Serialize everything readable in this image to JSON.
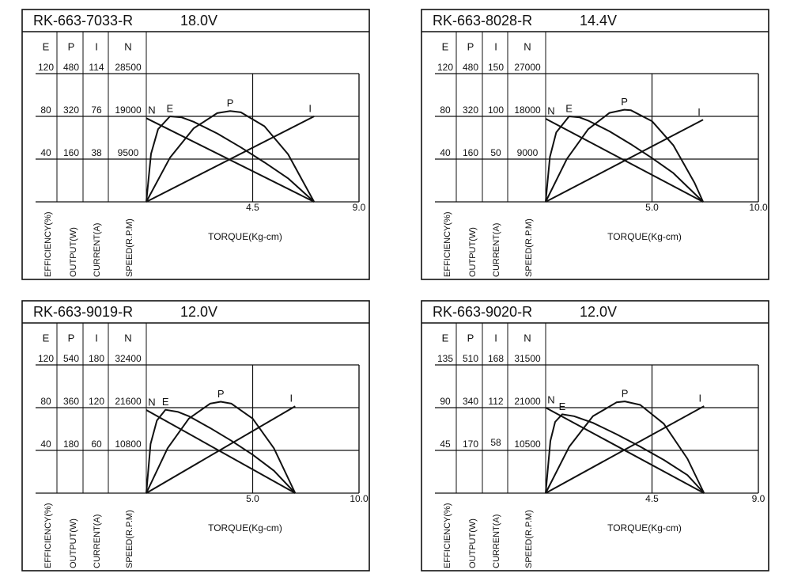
{
  "chart_data": [
    {
      "type": "line",
      "title": "RK-663-7033-R",
      "voltage": "18.0V",
      "xlabel": "TORQUE(Kg-cm)",
      "xlim": [
        0,
        9
      ],
      "xticks": [
        4.5,
        {
          "value": 9,
          "label": "9.0"
        }
      ],
      "axes": [
        {
          "name": "E",
          "label": "EFFICIENCY(%)",
          "ylim": [
            0,
            120
          ],
          "yticks": [
            40,
            80,
            120
          ]
        },
        {
          "name": "P",
          "label": "OUTPUT(W)",
          "ylim": [
            0,
            480
          ],
          "yticks": [
            160,
            320,
            480
          ]
        },
        {
          "name": "I",
          "label": "CURRENT(A)",
          "ylim": [
            0,
            114
          ],
          "yticks": [
            38,
            76,
            114
          ]
        },
        {
          "name": "N",
          "label": "SPEED(R.P.M)",
          "ylim": [
            0,
            28500
          ],
          "yticks": [
            9500,
            19000,
            28500
          ]
        }
      ],
      "series": [
        {
          "name": "N",
          "x": [
            0,
            7.1
          ],
          "values": [
            18600,
            0
          ]
        },
        {
          "name": "E",
          "x": [
            0,
            0.2,
            0.5,
            1,
            1.5,
            2,
            3,
            4,
            5,
            6,
            7.1
          ],
          "values": [
            0,
            45,
            68,
            80,
            79,
            75,
            64,
            51,
            37,
            22,
            0
          ]
        },
        {
          "name": "P",
          "x": [
            0,
            1,
            2,
            3,
            3.55,
            4,
            5,
            6,
            7.1
          ],
          "values": [
            0,
            165,
            275,
            332,
            340,
            335,
            283,
            178,
            0
          ]
        },
        {
          "name": "I",
          "x": [
            0,
            7.1
          ],
          "values": [
            0,
            76
          ]
        }
      ]
    },
    {
      "type": "line",
      "title": "RK-663-8028-R",
      "voltage": "14.4V",
      "xlabel": "TORQUE(Kg-cm)",
      "xlim": [
        0,
        10
      ],
      "xticks": [
        {
          "value": 5,
          "label": "5.0"
        },
        {
          "value": 10,
          "label": "10.0"
        }
      ],
      "axes": [
        {
          "name": "E",
          "label": "EFFICIENCY(%)",
          "ylim": [
            0,
            120
          ],
          "yticks": [
            40,
            80,
            120
          ]
        },
        {
          "name": "P",
          "label": "OUTPUT(W)",
          "ylim": [
            0,
            480
          ],
          "yticks": [
            160,
            320,
            480
          ]
        },
        {
          "name": "I",
          "label": "CURRENT(A)",
          "ylim": [
            0,
            150
          ],
          "yticks": [
            50,
            100,
            150
          ]
        },
        {
          "name": "N",
          "label": "SPEED(R.P.M)",
          "ylim": [
            0,
            27000
          ],
          "yticks": [
            9000,
            18000,
            27000
          ]
        }
      ],
      "series": [
        {
          "name": "N",
          "x": [
            0,
            7.4
          ],
          "values": [
            17500,
            0
          ]
        },
        {
          "name": "E",
          "x": [
            0,
            0.2,
            0.5,
            1.1,
            1.6,
            2,
            3,
            4,
            5,
            6,
            7.4
          ],
          "values": [
            0,
            42,
            65,
            80,
            79,
            76,
            66,
            54,
            41,
            27,
            0
          ]
        },
        {
          "name": "P",
          "x": [
            0,
            1,
            2,
            3,
            3.7,
            4,
            5,
            6,
            7,
            7.4
          ],
          "values": [
            0,
            161,
            272,
            333,
            345,
            343,
            302,
            212,
            71,
            0
          ]
        },
        {
          "name": "I",
          "x": [
            0,
            7.4
          ],
          "values": [
            0,
            96
          ]
        }
      ]
    },
    {
      "type": "line",
      "title": "RK-663-9019-R",
      "voltage": "12.0V",
      "xlabel": "TORQUE(Kg-cm)",
      "xlim": [
        0,
        10
      ],
      "xticks": [
        {
          "value": 5,
          "label": "5.0"
        },
        {
          "value": 10,
          "label": "10.0"
        }
      ],
      "axes": [
        {
          "name": "E",
          "label": "EFFICIENCY(%)",
          "ylim": [
            0,
            120
          ],
          "yticks": [
            40,
            80,
            120
          ]
        },
        {
          "name": "P",
          "label": "OUTPUT(W)",
          "ylim": [
            0,
            540
          ],
          "yticks": [
            180,
            360,
            540
          ]
        },
        {
          "name": "I",
          "label": "CURRENT(A)",
          "ylim": [
            0,
            180
          ],
          "yticks": [
            60,
            120,
            180
          ]
        },
        {
          "name": "N",
          "label": "SPEED(R.P.M)",
          "ylim": [
            0,
            32400
          ],
          "yticks": [
            10800,
            21600,
            32400
          ]
        }
      ],
      "series": [
        {
          "name": "N",
          "x": [
            0,
            7
          ],
          "values": [
            21000,
            0
          ]
        },
        {
          "name": "E",
          "x": [
            0,
            0.2,
            0.5,
            0.9,
            1.5,
            2,
            3,
            4,
            5,
            6,
            7
          ],
          "values": [
            0,
            46,
            68,
            78,
            76,
            72,
            61,
            49,
            36,
            21,
            0
          ]
        },
        {
          "name": "P",
          "x": [
            0,
            1,
            2,
            3,
            3.5,
            4,
            5,
            6,
            7
          ],
          "values": [
            0,
            189,
            314,
            377,
            385,
            377,
            314,
            189,
            0
          ]
        },
        {
          "name": "I",
          "x": [
            0,
            7
          ],
          "values": [
            0,
            122
          ]
        }
      ]
    },
    {
      "type": "line",
      "title": "RK-663-9020-R",
      "voltage": "12.0V",
      "xlabel": "TORQUE(Kg-cm)",
      "xlim": [
        0,
        9
      ],
      "xticks": [
        4.5,
        {
          "value": 9,
          "label": "9.0"
        }
      ],
      "axes": [
        {
          "name": "E",
          "label": "EFFICIENCY(%)",
          "ylim": [
            0,
            135
          ],
          "yticks": [
            45,
            90,
            135
          ]
        },
        {
          "name": "P",
          "label": "OUTPUT(W)",
          "ylim": [
            0,
            510
          ],
          "yticks": [
            170,
            340,
            510
          ]
        },
        {
          "name": "I",
          "label": "CURRENT(A)",
          "ylim": [
            0,
            168
          ],
          "yticks": [
            58,
            112,
            168
          ]
        },
        {
          "name": "N",
          "label": "SPEED(R.P.M)",
          "ylim": [
            0,
            31500
          ],
          "yticks": [
            10500,
            21000,
            31500
          ]
        }
      ],
      "series": [
        {
          "name": "N",
          "x": [
            0,
            6.7
          ],
          "values": [
            21000,
            0
          ]
        },
        {
          "name": "E",
          "x": [
            0,
            0.2,
            0.4,
            0.7,
            1.2,
            2,
            3,
            4,
            5,
            6,
            6.7
          ],
          "values": [
            0,
            55,
            75,
            83,
            81,
            74,
            62,
            49,
            35,
            19,
            0
          ]
        },
        {
          "name": "P",
          "x": [
            0,
            1,
            2,
            3,
            3.35,
            4,
            5,
            6,
            6.7
          ],
          "values": [
            0,
            185,
            306,
            361,
            365,
            351,
            276,
            137,
            0
          ]
        },
        {
          "name": "I",
          "x": [
            0,
            6.7
          ],
          "values": [
            0,
            114
          ]
        }
      ]
    }
  ]
}
